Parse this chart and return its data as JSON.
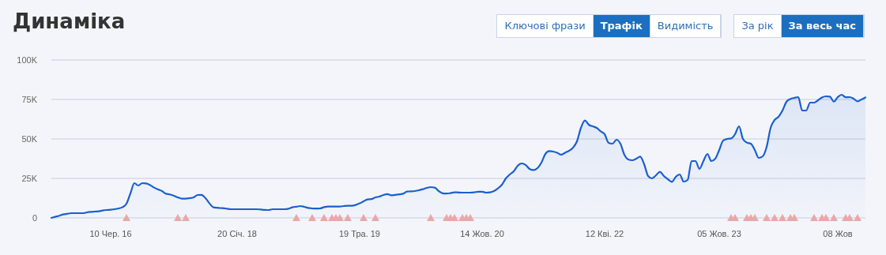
{
  "chart_data": {
    "type": "area",
    "title": "Динаміка",
    "annotations": [
      "Ключові фрази",
      "Трафік",
      "Видимість",
      "За рік",
      "За весь час"
    ],
    "categories": [
      null,
      null,
      null,
      null,
      null,
      null,
      null,
      null,
      null,
      null,
      null,
      null,
      null,
      null,
      null,
      "10 Чер. 16",
      null,
      null,
      null,
      null,
      null,
      null,
      null,
      null,
      null,
      null,
      null,
      null,
      null,
      null,
      null,
      null,
      null,
      null,
      null,
      null,
      null,
      null,
      null,
      null,
      null,
      null,
      null,
      null,
      null,
      null,
      null,
      "20 Січ. 18",
      null,
      null,
      null,
      null,
      null,
      null,
      null,
      null,
      null,
      null,
      null,
      null,
      null,
      null,
      null,
      null,
      null,
      null,
      null,
      null,
      null,
      null,
      null,
      null,
      null,
      null,
      null,
      null,
      null,
      null,
      "19 Тра. 19",
      null,
      null,
      null,
      null,
      null,
      null,
      null,
      null,
      null,
      null,
      null,
      null,
      null,
      null,
      null,
      null,
      null,
      null,
      null,
      null,
      null,
      null,
      null,
      null,
      null,
      null,
      null,
      null,
      null,
      null,
      "14 Жов. 20",
      null,
      null,
      null,
      null,
      null,
      null,
      null,
      null,
      null,
      null,
      null,
      null,
      null,
      null,
      null,
      null,
      null,
      null,
      null,
      null,
      null,
      null,
      null,
      null,
      null,
      null,
      null,
      null,
      null,
      null,
      "12 Кві. 22",
      null,
      null,
      null,
      null,
      null,
      null,
      null,
      null,
      null,
      null,
      null,
      null,
      null,
      null,
      null,
      null,
      null,
      null,
      null,
      null,
      null,
      null,
      null,
      null,
      null,
      null,
      null,
      null,
      "05 Жов. 23",
      null,
      null,
      null,
      null,
      null,
      null,
      null,
      null,
      null,
      null,
      null,
      null,
      null,
      null,
      null,
      null,
      null,
      null,
      null,
      null,
      null,
      null,
      null,
      null,
      null,
      null,
      null,
      null,
      null,
      "08 Жов",
      null,
      null,
      null,
      null,
      null,
      null,
      null
    ],
    "series": [
      {
        "color": "#1a5fd0",
        "values": [
          0,
          0.7,
          1.4,
          2.2,
          2.6,
          3,
          3,
          3,
          3,
          3.5,
          3.8,
          4,
          4.2,
          4.7,
          5,
          5.2,
          5.5,
          6,
          6.8,
          9,
          15.5,
          22,
          20.5,
          22,
          21.8,
          20.8,
          19.2,
          18,
          17,
          15.3,
          14.9,
          14,
          13,
          12.2,
          12.2,
          12.5,
          13,
          14.5,
          14.6,
          12.5,
          9.2,
          6.7,
          6.4,
          6.2,
          6,
          5.6,
          5.5,
          5.5,
          5.5,
          5.5,
          5.5,
          5.5,
          5.5,
          5.3,
          5.1,
          5,
          5.5,
          5.5,
          5.5,
          5.5,
          5.8,
          6.7,
          7.1,
          7.5,
          7,
          6.3,
          6,
          5.9,
          6,
          6.8,
          7.2,
          7.2,
          7.2,
          7.2,
          7.5,
          7.7,
          7.7,
          8.2,
          9.2,
          10.5,
          11.7,
          11.9,
          13,
          13.5,
          14.5,
          15.1,
          14.3,
          14.6,
          14.9,
          15.3,
          16.7,
          16.8,
          17,
          17.5,
          18.2,
          19,
          19.5,
          19.2,
          17,
          15.6,
          15.4,
          15.7,
          16.2,
          16.1,
          16,
          16,
          16,
          16.2,
          16.6,
          16.6,
          16,
          16.2,
          17,
          18.7,
          21,
          25,
          27.5,
          29.5,
          33,
          34.5,
          33.6,
          31,
          30.3,
          31.5,
          35,
          40.5,
          42.3,
          42,
          41.2,
          40,
          41.3,
          42.5,
          44.5,
          48.5,
          57,
          61.7,
          59,
          58,
          57,
          54.8,
          53,
          47.5,
          47,
          49.5,
          47,
          40,
          37,
          36.5,
          37.5,
          38.8,
          34,
          26.5,
          25,
          27,
          29.2,
          26.5,
          24.5,
          22.8,
          26,
          27.5,
          23,
          24,
          36,
          36,
          31,
          36,
          40.5,
          36,
          37.5,
          43,
          49,
          50,
          50.3,
          53,
          58,
          50,
          47.7,
          47,
          43,
          38,
          39,
          45,
          57,
          62,
          64,
          68,
          73.5,
          75.3,
          76,
          76.5,
          68,
          68,
          73,
          73,
          74.5,
          76.3,
          77,
          76.8,
          73.7,
          76.5,
          78,
          76.4,
          76.5,
          75.5,
          73.8,
          75,
          76.3
        ]
      },
      {
        "type": "scatter",
        "color": "#e8a8a8",
        "marker": "triangle",
        "values": [
          null,
          null,
          null,
          null,
          null,
          null,
          null,
          null,
          null,
          null,
          null,
          null,
          null,
          null,
          null,
          null,
          null,
          null,
          null,
          0,
          null,
          null,
          null,
          null,
          null,
          null,
          null,
          null,
          null,
          null,
          null,
          null,
          0,
          null,
          0,
          null,
          null,
          null,
          null,
          null,
          null,
          null,
          null,
          null,
          null,
          null,
          null,
          null,
          null,
          null,
          null,
          null,
          null,
          null,
          null,
          null,
          null,
          null,
          null,
          null,
          null,
          null,
          0,
          null,
          null,
          null,
          0,
          null,
          null,
          0,
          null,
          0,
          0,
          0,
          null,
          0,
          null,
          null,
          null,
          0,
          null,
          null,
          0,
          null,
          null,
          null,
          null,
          null,
          null,
          null,
          null,
          null,
          null,
          null,
          null,
          null,
          0,
          null,
          null,
          null,
          0,
          0,
          0,
          null,
          0,
          0,
          0,
          null,
          null,
          null,
          null,
          null,
          null,
          null,
          null,
          null,
          null,
          null,
          null,
          null,
          null,
          null,
          null,
          null,
          null,
          null,
          null,
          null,
          null,
          null,
          null,
          null,
          null,
          null,
          null,
          null,
          null,
          null,
          null,
          null,
          null,
          null,
          null,
          null,
          null,
          null,
          null,
          null,
          null,
          null,
          null,
          null,
          null,
          null,
          null,
          null,
          null,
          null,
          null,
          null,
          null,
          null,
          null,
          null,
          null,
          null,
          null,
          null,
          null,
          null,
          null,
          null,
          0,
          0,
          null,
          null,
          0,
          0,
          0,
          null,
          null,
          0,
          null,
          0,
          null,
          0,
          null,
          0,
          0,
          null,
          null,
          null,
          null,
          0,
          null,
          0,
          0,
          null,
          0,
          null,
          null,
          0,
          0,
          null,
          0,
          null,
          null
        ]
      }
    ],
    "ylim": [
      0,
      100
    ],
    "yticks": [
      0,
      {
        "value": 25,
        "label": "25K"
      },
      {
        "value": 50,
        "label": "50K"
      },
      {
        "value": 75,
        "label": "75K"
      },
      {
        "value": 100,
        "label": "100K"
      }
    ],
    "grid": "y"
  }
}
